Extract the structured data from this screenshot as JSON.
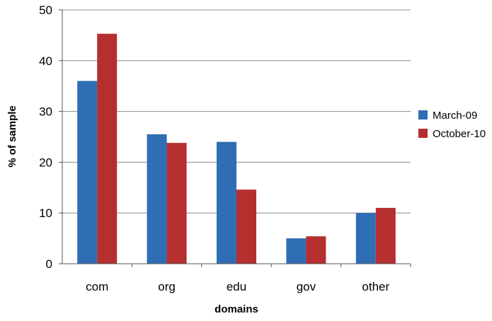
{
  "chart_data": {
    "type": "bar",
    "title": "",
    "xlabel": "domains",
    "ylabel": "% of sample",
    "categories": [
      "com",
      "org",
      "edu",
      "gov",
      "other"
    ],
    "series": [
      {
        "name": "March-09",
        "values": [
          36,
          25.5,
          24,
          5,
          10
        ],
        "color": "#2f6db5"
      },
      {
        "name": "October-10",
        "values": [
          45.3,
          23.8,
          14.6,
          5.4,
          11
        ],
        "color": "#b52f2f"
      }
    ],
    "ylim": [
      0,
      50
    ],
    "yticks": [
      "0",
      "10",
      "20",
      "30",
      "40",
      "50"
    ],
    "grid": true,
    "legend_position": "right"
  }
}
